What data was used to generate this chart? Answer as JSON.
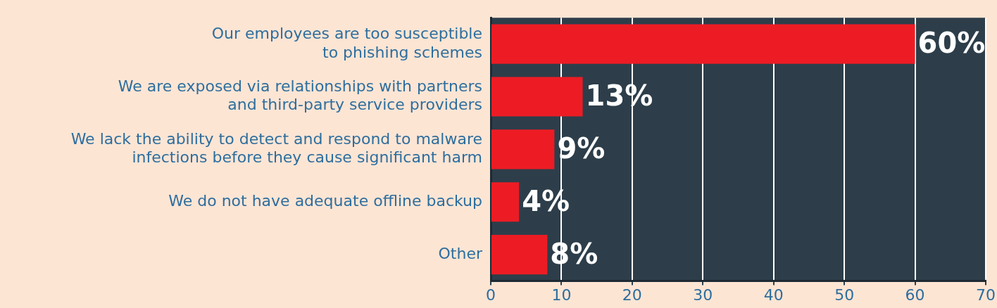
{
  "chart_data": {
    "type": "bar",
    "orientation": "horizontal",
    "categories": [
      "Our employees are too susceptible\nto phishing schemes",
      "We are exposed via relationships with partners\nand third-party service providers",
      "We lack the ability to detect and respond to malware\ninfections before they cause significant harm",
      "We do not have adequate offline backup",
      "Other"
    ],
    "values": [
      60,
      13,
      9,
      4,
      8
    ],
    "value_labels": [
      "60%",
      "13%",
      "9%",
      "4%",
      "8%"
    ],
    "color": "#ed1c24",
    "xlim": [
      0,
      70
    ],
    "xticks": [
      0,
      10,
      20,
      30,
      40,
      50,
      60,
      70
    ],
    "grid": "x",
    "legend": false
  }
}
